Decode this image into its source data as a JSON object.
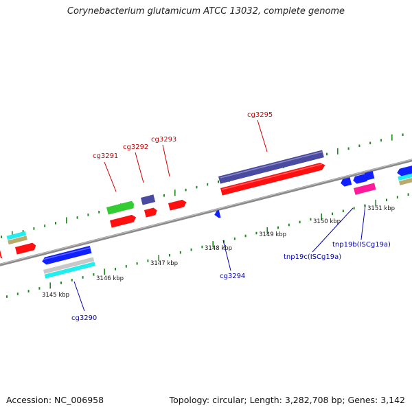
{
  "title": "Corynebacterium glutamicum ATCC 13032, complete genome",
  "accession_text": "Accession: NC_006958",
  "stats_text": "Topology: circular; Length: 3,282,708 bp; Genes: 3,142",
  "colors": {
    "backbone": "#8a8a8a",
    "tick": "#1e8a1e",
    "forward_label": "#cc0000",
    "reverse_label": "#0000b0",
    "cds_red": "#ff1010",
    "cds_darkblue": "#4a4aa0",
    "cds_blue": "#1020ff",
    "cds_green": "#33cc33",
    "cds_cyan": "#22eeee",
    "cds_tan": "#b8ac6c",
    "cds_silver": "#c8c8c8",
    "cds_magenta": "#ff1a9a"
  },
  "ticks": [
    "3145 kbp",
    "3146 kbp",
    "3147 kbp",
    "3148 kbp",
    "3149 kbp",
    "3150 kbp",
    "3151 kbp"
  ],
  "forward_genes": [
    "cg3291",
    "cg3292",
    "cg3293",
    "cg3295"
  ],
  "reverse_genes": [
    "cg3290",
    "cg3294",
    "tnp19c(ISCg19a)",
    "tnp19b(ISCg19a)"
  ]
}
